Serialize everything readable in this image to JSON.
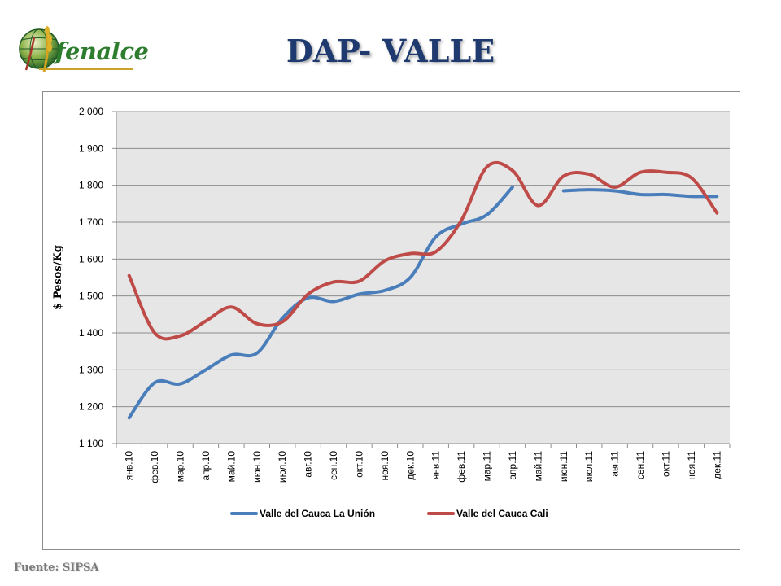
{
  "header": {
    "logo_text": "fenalce",
    "title": "DAP- VALLE"
  },
  "footer": {
    "source": "Fuente: SIPSA"
  },
  "chart_data": {
    "type": "line",
    "title": "",
    "xlabel": "",
    "ylabel": "$ Pesos/Kg",
    "ylim": [
      1100,
      2000
    ],
    "yticks": [
      1100,
      1200,
      1300,
      1400,
      1500,
      1600,
      1700,
      1800,
      1900,
      2000
    ],
    "ytick_labels": [
      "1 100",
      "1 200",
      "1 300",
      "1 400",
      "1 500",
      "1 600",
      "1 700",
      "1 800",
      "1 900",
      "2 000"
    ],
    "grid": true,
    "legend_position": "bottom",
    "categories": [
      "янв.10",
      "фев.10",
      "мар.10",
      "апр.10",
      "май.10",
      "июн.10",
      "июл.10",
      "авг.10",
      "сен.10",
      "окт.10",
      "ноя.10",
      "дек.10",
      "янв.11",
      "фев.11",
      "мар.11",
      "апр.11",
      "май.11",
      "июн.11",
      "июл.11",
      "авг.11",
      "сен.11",
      "окт.11",
      "ноя.11",
      "дек.11"
    ],
    "series": [
      {
        "name": "Valle del Cauca La Unión",
        "color": "#4a7ebb",
        "values": [
          1170,
          1265,
          1262,
          1300,
          1340,
          1345,
          1440,
          1495,
          1485,
          1505,
          1515,
          1550,
          1660,
          1695,
          1720,
          1795,
          null,
          1785,
          1788,
          1785,
          1775,
          1775,
          1770,
          1770
        ]
      },
      {
        "name": "Valle del Cauca Cali",
        "color": "#be4b48",
        "values": [
          1555,
          1400,
          1392,
          1432,
          1470,
          1425,
          1430,
          1505,
          1538,
          1540,
          1595,
          1615,
          1620,
          1705,
          1850,
          1840,
          1745,
          1825,
          1830,
          1795,
          1835,
          1835,
          1820,
          1725
        ]
      }
    ]
  }
}
